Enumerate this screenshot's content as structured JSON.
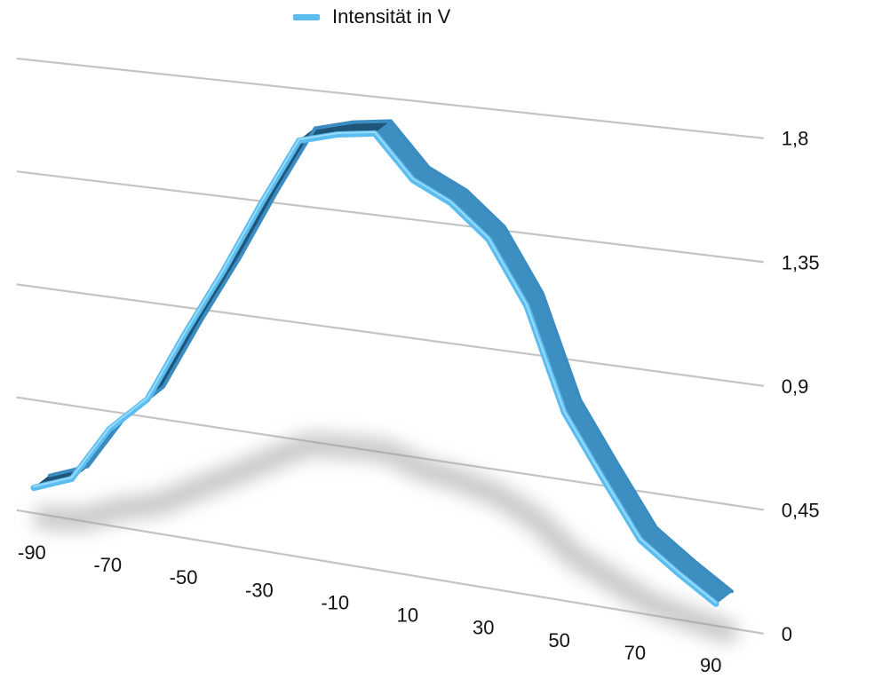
{
  "chart_data": {
    "type": "line",
    "title": "",
    "xlabel": "",
    "ylabel": "",
    "x": [
      -90,
      -80,
      -70,
      -60,
      -50,
      -40,
      -30,
      -20,
      -10,
      0,
      10,
      20,
      30,
      40,
      50,
      60,
      70,
      80,
      90
    ],
    "x_tick_labels": [
      "-90",
      "-70",
      "-50",
      "-30",
      "-10",
      "10",
      "30",
      "50",
      "70",
      "90"
    ],
    "y_tick_labels": [
      "0",
      "0,45",
      "0,9",
      "1,35",
      "1,8"
    ],
    "ylim": [
      0,
      1.8
    ],
    "grid": true,
    "legend_position": "top",
    "series": [
      {
        "name": "Intensität in V",
        "color": "#5bbcf0",
        "values": [
          0.1,
          0.16,
          0.38,
          0.52,
          0.8,
          1.06,
          1.34,
          1.6,
          1.64,
          1.66,
          1.5,
          1.43,
          1.31,
          1.08,
          0.7,
          0.48,
          0.27,
          0.17,
          0.08
        ]
      }
    ]
  }
}
